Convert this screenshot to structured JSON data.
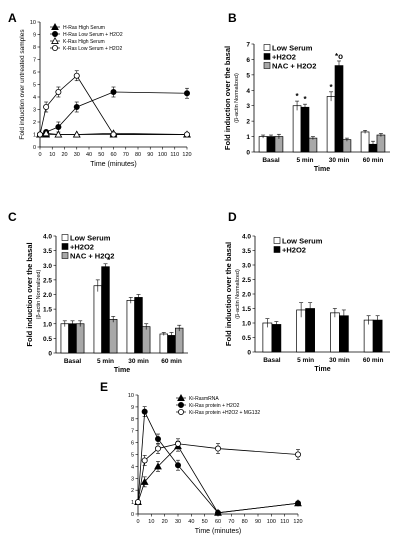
{
  "chart_data": [
    {
      "panel": "A",
      "type": "line",
      "xlabel": "Time (minutes)",
      "ylabel": "Fold induction over untreated samples",
      "xticks": [
        "0",
        "10",
        "20",
        "30",
        "40",
        "50",
        "60",
        "70",
        "80",
        "90",
        "100",
        "110",
        "120"
      ],
      "yticks": [
        "0",
        "1",
        "2",
        "3",
        "4",
        "5",
        "6",
        "7",
        "8",
        "9",
        "10"
      ],
      "xlim": [
        0,
        120
      ],
      "ylim": [
        0,
        10
      ],
      "legend_position": "top-left",
      "series": [
        {
          "name": "H-Ras High Serum",
          "marker": "triangle",
          "x": [
            0,
            5,
            15,
            30,
            60,
            120
          ],
          "y": [
            1.0,
            1.0,
            1.0,
            1.0,
            1.0,
            1.0
          ]
        },
        {
          "name": "H-Ras Low Serum + H2O2",
          "marker": "filled-circle",
          "x": [
            0,
            5,
            15,
            30,
            60,
            120
          ],
          "y": [
            1.0,
            1.2,
            1.6,
            3.2,
            4.4,
            4.3
          ]
        },
        {
          "name": "K-Ras High Serum",
          "marker": "open-triangle",
          "x": [
            0,
            5,
            15,
            30,
            60,
            120
          ],
          "y": [
            1.0,
            1.1,
            1.0,
            1.0,
            1.1,
            1.0
          ]
        },
        {
          "name": "K-Ras Low Serum + H2O2",
          "marker": "open-circle",
          "x": [
            0,
            5,
            15,
            30,
            60,
            120
          ],
          "y": [
            1.0,
            3.2,
            4.4,
            5.7,
            1.0,
            1.0
          ]
        }
      ]
    },
    {
      "panel": "B",
      "type": "bar",
      "ylabel": "Fold induction over the basal",
      "ylabel2": "(β-actin Normalized)",
      "xlabel": "Time",
      "categories": [
        "Basal",
        "5 min",
        "30 min",
        "60 min"
      ],
      "yticks": [
        "0",
        "1",
        "2",
        "3",
        "4",
        "5",
        "6",
        "7"
      ],
      "ylim": [
        0,
        7
      ],
      "legend_position": "top-left",
      "series": [
        {
          "name": "Low Serum",
          "fill": "white",
          "values": [
            1.0,
            3.0,
            3.6,
            1.3
          ],
          "errors": [
            0.1,
            0.3,
            0.3,
            0.1
          ]
        },
        {
          "name": "+H2O2",
          "fill": "black",
          "values": [
            1.0,
            2.9,
            5.6,
            0.5
          ],
          "errors": [
            0.1,
            0.2,
            0.3,
            0.2
          ]
        },
        {
          "name": "NAC + H2O2",
          "fill": "gray",
          "values": [
            1.0,
            0.9,
            0.8,
            1.1
          ],
          "errors": [
            0.15,
            0.1,
            0.1,
            0.1
          ]
        }
      ],
      "annotations": [
        "*",
        "*",
        "*",
        "*o"
      ]
    },
    {
      "panel": "C",
      "type": "bar",
      "ylabel": "Fold induction over the basal",
      "ylabel2": "(β-actin Normalized)",
      "xlabel": "Time",
      "categories": [
        "Basal",
        "5 min",
        "30 min",
        "60 min"
      ],
      "yticks": [
        "0",
        "0.5",
        "1.0",
        "1.5",
        "2.0",
        "2.5",
        "3.0",
        "3.5",
        "4.0"
      ],
      "ylim": [
        0,
        4
      ],
      "legend_position": "top-left",
      "series": [
        {
          "name": "Low Serum",
          "fill": "white",
          "values": [
            1.0,
            2.3,
            1.8,
            0.65
          ],
          "errors": [
            0.1,
            0.2,
            0.1,
            0.05
          ]
        },
        {
          "name": "+H2O2",
          "fill": "black",
          "values": [
            1.0,
            2.95,
            1.9,
            0.6
          ],
          "errors": [
            0.1,
            0.1,
            0.1,
            0.1
          ]
        },
        {
          "name": "NAC + H2O2",
          "fill": "gray",
          "values": [
            1.0,
            1.15,
            0.9,
            0.85
          ],
          "errors": [
            0.1,
            0.1,
            0.1,
            0.1
          ]
        }
      ],
      "annotations": [
        "*"
      ]
    },
    {
      "panel": "D",
      "type": "bar",
      "ylabel": "Fold induction over the basal",
      "ylabel2": "(β-actin Normalized)",
      "xlabel": "Time",
      "categories": [
        "Basal",
        "5 min",
        "30 min",
        "60 min"
      ],
      "yticks": [
        "0",
        "0.5",
        "1.0",
        "1.5",
        "2.0",
        "2.5",
        "3.0",
        "3.5",
        "4.0"
      ],
      "ylim": [
        0,
        4
      ],
      "legend_position": "top-left",
      "series": [
        {
          "name": "Low Serum",
          "fill": "white",
          "values": [
            1.0,
            1.45,
            1.35,
            1.1
          ],
          "errors": [
            0.15,
            0.25,
            0.15,
            0.15
          ]
        },
        {
          "name": "+H2O2",
          "fill": "black",
          "values": [
            0.95,
            1.5,
            1.25,
            1.1
          ],
          "errors": [
            0.1,
            0.2,
            0.2,
            0.15
          ]
        }
      ]
    },
    {
      "panel": "E",
      "type": "line",
      "xlabel": "Time (minutes)",
      "ylabel": "",
      "xticks": [
        "0",
        "10",
        "20",
        "30",
        "40",
        "50",
        "60",
        "70",
        "80",
        "90",
        "100",
        "110",
        "120"
      ],
      "yticks": [
        "0",
        "1",
        "2",
        "3",
        "4",
        "5",
        "6",
        "7",
        "8",
        "9",
        "10"
      ],
      "xlim": [
        0,
        120
      ],
      "ylim": [
        0,
        10
      ],
      "legend_position": "top-right",
      "series": [
        {
          "name": "Ki-RasmRNA",
          "marker": "triangle",
          "x": [
            0,
            5,
            15,
            30,
            60,
            120
          ],
          "y": [
            1.0,
            2.7,
            4.0,
            5.7,
            0.1,
            0.9
          ]
        },
        {
          "name": "Ki-Ras protein + H2O2",
          "marker": "filled-circle",
          "x": [
            0,
            5,
            15,
            30,
            60,
            120
          ],
          "y": [
            1.0,
            8.6,
            6.3,
            4.1,
            0.1,
            0.9
          ]
        },
        {
          "name": "Ki-Ras protein +H2O2 + MG132",
          "marker": "open-circle",
          "x": [
            0,
            5,
            15,
            30,
            60,
            120
          ],
          "y": [
            1.0,
            4.5,
            5.5,
            5.9,
            5.5,
            5.0
          ]
        }
      ]
    }
  ]
}
